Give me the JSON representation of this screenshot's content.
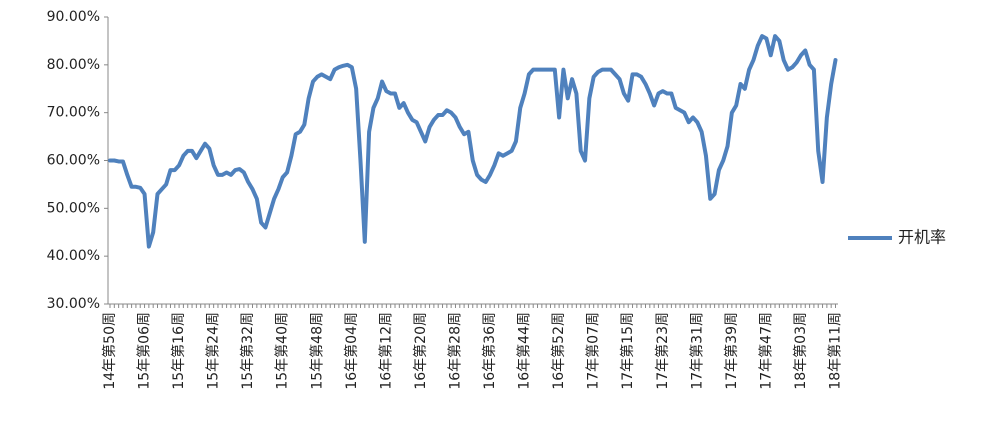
{
  "chart_data": {
    "type": "line",
    "categories": [
      "14年第50周",
      null,
      null,
      null,
      null,
      null,
      null,
      null,
      "15年第06周",
      null,
      null,
      null,
      null,
      null,
      null,
      null,
      "15年第16周",
      null,
      null,
      null,
      null,
      null,
      null,
      null,
      "15年第24周",
      null,
      null,
      null,
      null,
      null,
      null,
      null,
      "15年第32周",
      null,
      null,
      null,
      null,
      null,
      null,
      null,
      "15年第40周",
      null,
      null,
      null,
      null,
      null,
      null,
      null,
      "15年第48周",
      null,
      null,
      null,
      null,
      null,
      null,
      null,
      "16年第04周",
      null,
      null,
      null,
      null,
      null,
      null,
      null,
      "16年第12周",
      null,
      null,
      null,
      null,
      null,
      null,
      null,
      "16年第20周",
      null,
      null,
      null,
      null,
      null,
      null,
      null,
      "16年第28周",
      null,
      null,
      null,
      null,
      null,
      null,
      null,
      "16年第36周",
      null,
      null,
      null,
      null,
      null,
      null,
      null,
      "16年第44周",
      null,
      null,
      null,
      null,
      null,
      null,
      null,
      "16年第52周",
      null,
      null,
      null,
      null,
      null,
      null,
      null,
      "17年第07周",
      null,
      null,
      null,
      null,
      null,
      null,
      null,
      "17年第15周",
      null,
      null,
      null,
      null,
      null,
      null,
      null,
      "17年第23周",
      null,
      null,
      null,
      null,
      null,
      null,
      null,
      "17年第31周",
      null,
      null,
      null,
      null,
      null,
      null,
      null,
      "17年第39周",
      null,
      null,
      null,
      null,
      null,
      null,
      null,
      "17年第47周",
      null,
      null,
      null,
      null,
      null,
      null,
      null,
      "18年第03周",
      null,
      null,
      null,
      null,
      null,
      null,
      null,
      "18年第11周"
    ],
    "series": [
      {
        "name": "开机率",
        "color": "#4f81bd",
        "values": [
          60,
          60,
          59.8,
          59.8,
          57,
          54.5,
          54.5,
          54.3,
          53,
          42,
          45,
          53,
          54,
          55,
          58,
          58,
          59,
          61,
          62,
          62,
          60.5,
          62,
          63.5,
          62.5,
          59,
          57,
          57,
          57.5,
          57,
          58,
          58.2,
          57.5,
          55.5,
          54,
          52,
          47,
          46,
          49,
          52,
          54,
          56.5,
          57.5,
          61,
          65.5,
          66,
          67.5,
          73,
          76.5,
          77.5,
          78,
          77.5,
          77,
          79,
          79.5,
          79.8,
          80,
          79.5,
          75,
          60,
          43,
          66,
          71,
          73,
          76.5,
          74.5,
          74,
          74,
          71,
          72,
          70,
          68.5,
          68,
          66,
          64,
          67,
          68.5,
          69.5,
          69.5,
          70.5,
          70,
          69,
          67,
          65.5,
          66,
          60,
          57,
          56,
          55.5,
          57,
          59,
          61.5,
          61,
          61.5,
          62,
          64,
          71,
          74,
          78,
          79,
          79,
          79,
          79,
          79,
          79,
          69,
          79,
          73,
          77,
          74,
          62,
          60,
          73,
          77.5,
          78.5,
          79,
          79,
          79,
          78,
          77,
          74,
          72.5,
          78,
          78,
          77.5,
          76,
          74,
          71.5,
          74,
          74.5,
          74,
          74,
          71,
          70.5,
          70,
          68,
          69,
          68,
          66,
          61,
          52,
          53,
          58,
          60,
          63,
          70,
          71.5,
          76,
          75,
          79,
          81,
          84,
          86,
          85.5,
          82,
          86,
          85,
          81,
          79,
          79.5,
          80.5,
          82,
          83,
          80,
          79,
          62,
          55.5,
          69,
          76,
          81
        ]
      }
    ],
    "ylim": [
      30,
      90
    ],
    "yticks": [
      {
        "value": 30,
        "label": "30.00%"
      },
      {
        "value": 40,
        "label": "40.00%"
      },
      {
        "value": 50,
        "label": "50.00%"
      },
      {
        "value": 60,
        "label": "60.00%"
      },
      {
        "value": 70,
        "label": "70.00%"
      },
      {
        "value": 80,
        "label": "80.00%"
      },
      {
        "value": 90,
        "label": "90.00%"
      }
    ],
    "grid": false,
    "legend": "right"
  }
}
